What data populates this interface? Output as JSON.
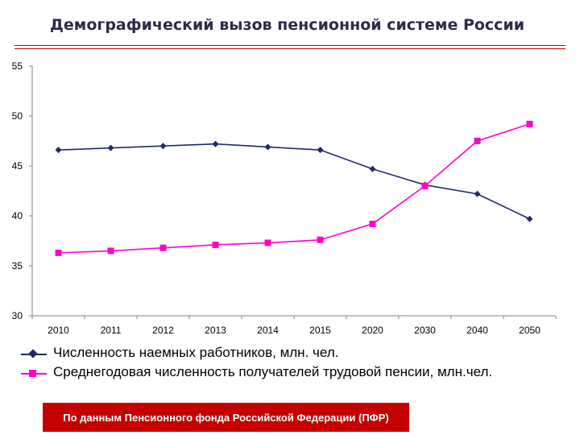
{
  "title": "Демографический вызов пенсионной системе России",
  "colors": {
    "title_rule": "#c00000",
    "source_bg": "#c40000",
    "source_text": "#ffffff"
  },
  "chart_data": {
    "type": "line",
    "categories": [
      "2010",
      "2011",
      "2012",
      "2013",
      "2014",
      "2015",
      "2020",
      "2030",
      "2040",
      "2050"
    ],
    "ylim": [
      30,
      55
    ],
    "yticks": [
      30,
      35,
      40,
      45,
      50,
      55
    ],
    "grid": false,
    "legend_position": "bottom",
    "series": [
      {
        "name": "Численность наемных работников, млн. чел.",
        "marker": "diamond",
        "color": "#1f2a6b",
        "values": [
          46.6,
          46.8,
          47.0,
          47.2,
          46.9,
          46.6,
          44.7,
          43.1,
          42.2,
          39.7
        ]
      },
      {
        "name": "Среднегодовая численность получателей трудовой пенсии, млн.чел.",
        "marker": "square",
        "color": "#ff00cc",
        "values": [
          36.3,
          36.5,
          36.8,
          37.1,
          37.3,
          37.6,
          39.2,
          43.0,
          47.5,
          49.2
        ]
      }
    ]
  },
  "source_note": "По данным Пенсионного фонда Российской Федерации (ПФР)"
}
